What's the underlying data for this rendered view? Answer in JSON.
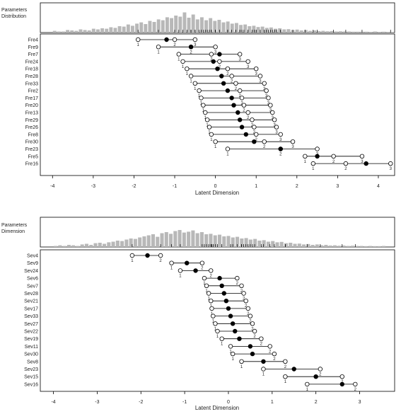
{
  "chart_data": [
    {
      "type": "scatter",
      "histogram_title_lines": [
        "Parameters",
        "Distribution"
      ],
      "xlabel": "Latent Dimension",
      "xlim": [
        -4.3,
        4.4
      ],
      "xticks": [
        -4,
        -3,
        -2,
        -1,
        0,
        1,
        2,
        3,
        4
      ],
      "items": [
        "Fre4",
        "Fre9",
        "Fre7",
        "Fre24",
        "Fre18",
        "Fre28",
        "Fre33",
        "Fre2",
        "Fre17",
        "Fre20",
        "Fre13",
        "Fre29",
        "Fre26",
        "Fre8",
        "Fre30",
        "Fre23",
        "Fre5",
        "Fre16"
      ],
      "thresholds_open": [
        [
          -1.9,
          -1.0,
          -0.5
        ],
        [
          -1.4,
          -0.6,
          0.0
        ],
        [
          -0.9,
          -0.1,
          0.6
        ],
        [
          -0.8,
          0.1,
          0.8
        ],
        [
          -0.7,
          0.3,
          1.0
        ],
        [
          -0.6,
          0.4,
          1.1
        ],
        [
          -0.5,
          0.5,
          1.2
        ],
        [
          -0.4,
          0.6,
          1.25
        ],
        [
          -0.35,
          0.65,
          1.3
        ],
        [
          -0.3,
          0.7,
          1.35
        ],
        [
          -0.25,
          0.8,
          1.4
        ],
        [
          -0.2,
          0.9,
          1.45
        ],
        [
          -0.15,
          0.95,
          1.5
        ],
        [
          -0.1,
          1.0,
          1.6
        ],
        [
          0.0,
          1.2,
          1.9
        ],
        [
          0.3,
          1.6,
          2.5
        ],
        [
          2.2,
          2.9,
          3.6
        ],
        [
          2.4,
          3.2,
          4.3
        ]
      ],
      "means": [
        -1.2,
        -0.6,
        0.1,
        -0.05,
        0.05,
        0.15,
        0.2,
        0.3,
        0.4,
        0.45,
        0.55,
        0.6,
        0.65,
        0.75,
        0.95,
        1.6,
        2.5,
        3.7
      ],
      "rating_labels": [
        "1",
        "2",
        "3"
      ],
      "hist_values": [
        0.08,
        0.05,
        0.05,
        0.12,
        0.1,
        0.08,
        0.15,
        0.12,
        0.1,
        0.18,
        0.15,
        0.2,
        0.18,
        0.25,
        0.22,
        0.3,
        0.28,
        0.38,
        0.32,
        0.42,
        0.48,
        0.4,
        0.55,
        0.5,
        0.62,
        0.58,
        0.72,
        0.68,
        0.8,
        0.75,
        0.95,
        0.7,
        0.85,
        0.62,
        0.72,
        0.58,
        0.68,
        0.55,
        0.6,
        0.48,
        0.52,
        0.42,
        0.45,
        0.36,
        0.38,
        0.3,
        0.32,
        0.26,
        0.28,
        0.22,
        0.24,
        0.18,
        0.2,
        0.15,
        0.16,
        0.12,
        0.14,
        0.1,
        0.12,
        0.08,
        0.1,
        0.07,
        0.08,
        0.06,
        0.07,
        0.05,
        0.06,
        0.05,
        0.05,
        0.04,
        0.04,
        0.04,
        0.04,
        0.03,
        0.05,
        0.03,
        0.04,
        0.03,
        0.03
      ],
      "hist_xlim": [
        -4.0,
        4.4
      ]
    },
    {
      "type": "scatter",
      "histogram_title_lines": [
        "Parameters",
        "Dimension"
      ],
      "xlabel": "Latent Dimension",
      "xlim": [
        -4.3,
        3.8
      ],
      "xticks": [
        -4,
        -3,
        -2,
        -1,
        0,
        1,
        2,
        3
      ],
      "items": [
        "Sev4",
        "Sev9",
        "Sev24",
        "Sev6",
        "Sev7",
        "Sev28",
        "Sev21",
        "Sev17",
        "Sev33",
        "Sev27",
        "Sev22",
        "Sev19",
        "Sev11",
        "Sev30",
        "Sev8",
        "Sev23",
        "Sev15",
        "Sev16"
      ],
      "thresholds_open": [
        [
          -2.2,
          -1.55
        ],
        [
          -1.3,
          -0.6
        ],
        [
          -1.1,
          -0.4
        ],
        [
          -0.55,
          0.2
        ],
        [
          -0.5,
          0.3
        ],
        [
          -0.45,
          0.35
        ],
        [
          -0.4,
          0.4
        ],
        [
          -0.38,
          0.45
        ],
        [
          -0.35,
          0.5
        ],
        [
          -0.3,
          0.55
        ],
        [
          -0.25,
          0.6
        ],
        [
          -0.15,
          0.75
        ],
        [
          0.05,
          0.95
        ],
        [
          0.1,
          1.05
        ],
        [
          0.3,
          1.3
        ],
        [
          0.8,
          2.1
        ],
        [
          1.3,
          2.6
        ],
        [
          1.8,
          2.9
        ]
      ],
      "means": [
        -1.85,
        -0.95,
        -0.75,
        -0.2,
        -0.15,
        -0.1,
        -0.05,
        0.0,
        0.05,
        0.1,
        0.15,
        0.25,
        0.5,
        0.55,
        0.8,
        1.5,
        2.0,
        2.6
      ],
      "rating_labels": [
        "1",
        "2"
      ],
      "hist_values": [
        0.05,
        0.08,
        0.05,
        0.1,
        0.08,
        0.05,
        0.12,
        0.15,
        0.1,
        0.18,
        0.2,
        0.15,
        0.22,
        0.25,
        0.3,
        0.28,
        0.35,
        0.4,
        0.38,
        0.45,
        0.5,
        0.55,
        0.6,
        0.48,
        0.65,
        0.7,
        0.62,
        0.75,
        0.8,
        0.68,
        0.72,
        0.78,
        0.65,
        0.7,
        0.6,
        0.62,
        0.55,
        0.58,
        0.5,
        0.52,
        0.45,
        0.48,
        0.4,
        0.42,
        0.35,
        0.38,
        0.3,
        0.32,
        0.25,
        0.28,
        0.22,
        0.24,
        0.18,
        0.2,
        0.15,
        0.16,
        0.12,
        0.14,
        0.1,
        0.12,
        0.08,
        0.1,
        0.07,
        0.08,
        0.06,
        0.07,
        0.05,
        0.06,
        0.05,
        0.05,
        0.04,
        0.05,
        0.04,
        0.04,
        0.05
      ],
      "hist_xlim": [
        -4.0,
        3.6
      ]
    }
  ],
  "colors": {
    "hist_bar": "#b8b8b8",
    "tick_mark": "#000000",
    "open_point": "#ffffff",
    "filled_point": "#000000",
    "line": "#000000",
    "frame": "#000000"
  }
}
